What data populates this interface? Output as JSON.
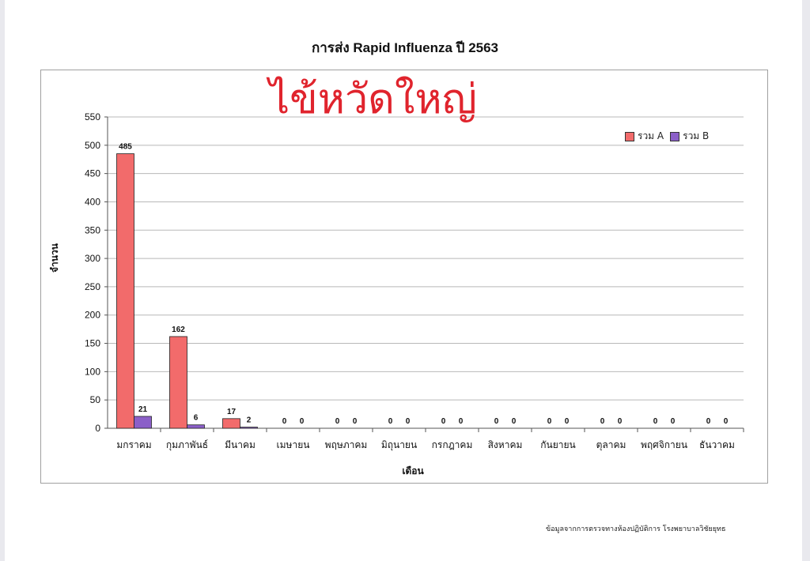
{
  "chart_data": {
    "type": "bar",
    "title": "การส่ง Rapid Influenza ปี 2563",
    "annotation": "ไข้หวัดใหญ่",
    "xlabel": "เดือน",
    "ylabel": "จำนวน",
    "ylim": [
      0,
      550
    ],
    "yticks": [
      "0",
      "50",
      "100",
      "150",
      "200",
      "250",
      "300",
      "350",
      "400",
      "450",
      "500",
      "550"
    ],
    "grid": true,
    "legend_position": "top-right",
    "categories": [
      "มกราคม",
      "กุมภาพันธ์",
      "มีนาคม",
      "เมษายน",
      "พฤษภาคม",
      "มิถุนายน",
      "กรกฎาคม",
      "สิงหาคม",
      "กันยายน",
      "ตุลาคม",
      "พฤศจิกายน",
      "ธันวาคม"
    ],
    "series": [
      {
        "name": "รวม A",
        "color": "#f26b6b",
        "values": [
          485,
          162,
          17,
          0,
          0,
          0,
          0,
          0,
          0,
          0,
          0,
          0
        ]
      },
      {
        "name": "รวม B",
        "color": "#8b5fc8",
        "values": [
          21,
          6,
          2,
          0,
          0,
          0,
          0,
          0,
          0,
          0,
          0,
          0
        ]
      }
    ]
  },
  "footnote": "ข้อมูลจากการตรวจทางห้องปฏิบัติการ โรงพยาบาลวิชัยยุทธ"
}
